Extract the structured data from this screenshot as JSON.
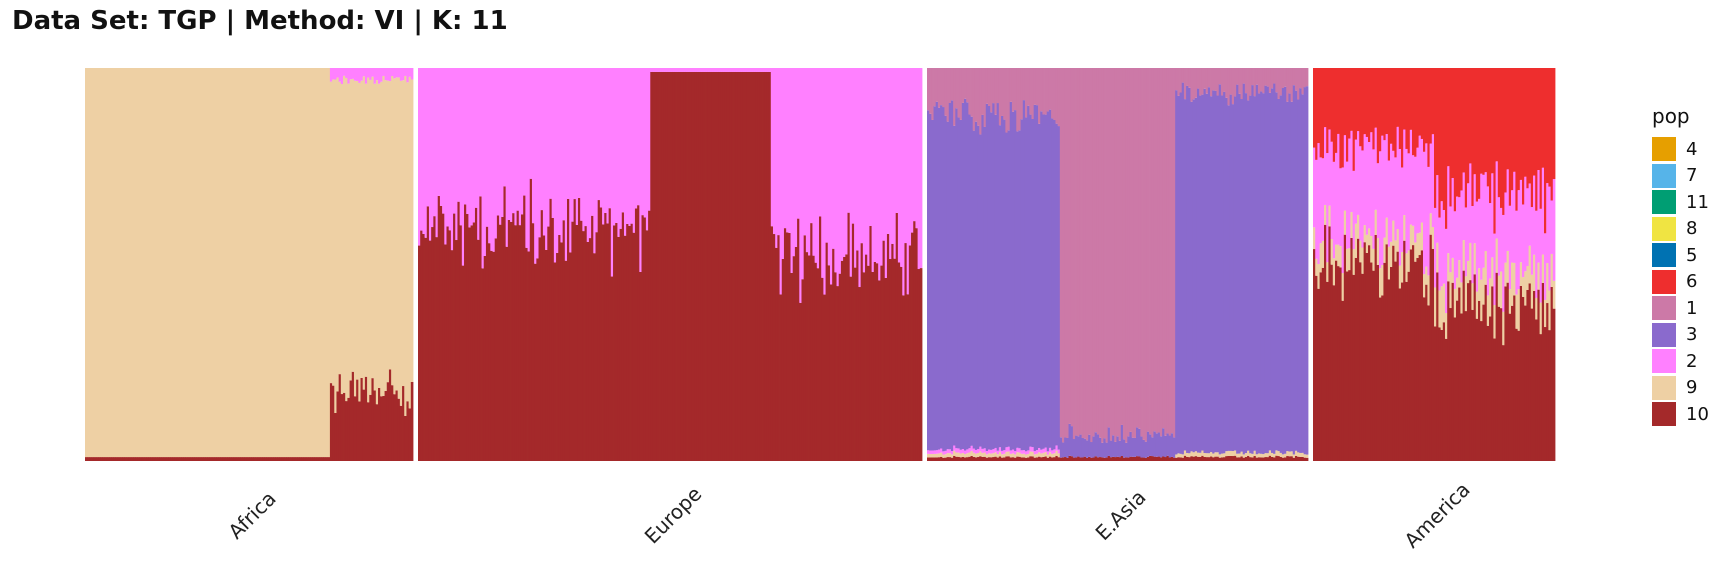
{
  "chart_data": {
    "type": "bar",
    "subtype": "stacked-admixture",
    "title": "Data Set: TGP | Method: VI | K: 11",
    "xlabel": "",
    "ylabel": "",
    "ylim": [
      0,
      1
    ],
    "grid": false,
    "legend": {
      "title": "pop",
      "position": "right",
      "entries": [
        {
          "label": "4",
          "color": "#E69F00"
        },
        {
          "label": "7",
          "color": "#56B4E9"
        },
        {
          "label": "11",
          "color": "#009E73"
        },
        {
          "label": "8",
          "color": "#F0E442"
        },
        {
          "label": "5",
          "color": "#0072B2"
        },
        {
          "label": "6",
          "color": "#EE2E2E"
        },
        {
          "label": "1",
          "color": "#CC79A7"
        },
        {
          "label": "3",
          "color": "#8A6ACD"
        },
        {
          "label": "2",
          "color": "#FF80FF"
        },
        {
          "label": "9",
          "color": "#EED0A4"
        },
        {
          "label": "10",
          "color": "#A4292A"
        }
      ]
    },
    "panels": [
      {
        "label": "Africa",
        "n": 150,
        "stack_order": [
          "10",
          "9",
          "2",
          "6"
        ],
        "segments": [
          {
            "frac": 0.75,
            "proportions": {
              "10": 0.01,
              "9": 0.99
            }
          },
          {
            "frac": 0.25,
            "proportions": {
              "10": 0.17,
              "9": 0.8,
              "2": 0.03
            }
          }
        ]
      },
      {
        "label": "Europe",
        "n": 230,
        "stack_order": [
          "10",
          "2"
        ],
        "segments": [
          {
            "frac": 0.46,
            "proportions": {
              "10": 0.6,
              "2": 0.4
            }
          },
          {
            "frac": 0.24,
            "proportions": {
              "10": 0.99,
              "2": 0.01
            }
          },
          {
            "frac": 0.3,
            "proportions": {
              "10": 0.52,
              "2": 0.48
            }
          }
        ]
      },
      {
        "label": "E.Asia",
        "n": 175,
        "stack_order": [
          "10",
          "9",
          "2",
          "3",
          "1",
          "6"
        ],
        "segments": [
          {
            "frac": 0.35,
            "proportions": {
              "10": 0.01,
              "9": 0.01,
              "2": 0.01,
              "3": 0.85,
              "1": 0.12
            }
          },
          {
            "frac": 0.3,
            "proportions": {
              "10": 0.01,
              "3": 0.05,
              "1": 0.94
            }
          },
          {
            "frac": 0.35,
            "proportions": {
              "10": 0.01,
              "9": 0.01,
              "3": 0.92,
              "1": 0.06
            }
          }
        ]
      },
      {
        "label": "America",
        "n": 110,
        "stack_order": [
          "10",
          "9",
          "2",
          "6"
        ],
        "segments": [
          {
            "frac": 0.5,
            "proportions": {
              "10": 0.5,
              "9": 0.06,
              "2": 0.24,
              "6": 0.2
            }
          },
          {
            "frac": 0.5,
            "proportions": {
              "10": 0.4,
              "9": 0.08,
              "2": 0.2,
              "6": 0.32
            }
          }
        ]
      }
    ]
  }
}
